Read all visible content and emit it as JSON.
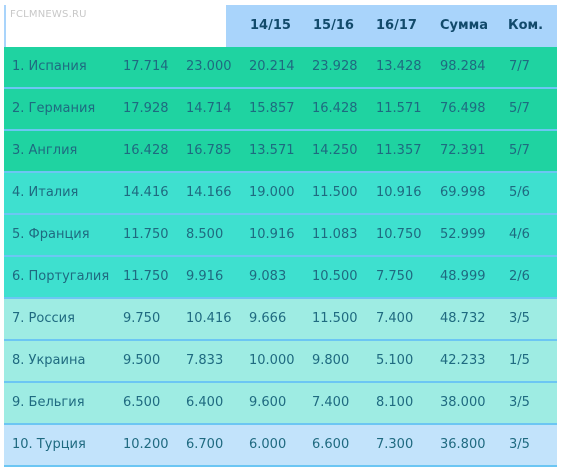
{
  "watermark": "FCLMNEWS.RU",
  "header": {
    "columns": [
      "14/15",
      "15/16",
      "16/17",
      "Сумма",
      "Ком."
    ]
  },
  "colors": {
    "header_bg": "#a9d4fb",
    "group_1": "#1fd3a1",
    "group_2": "#3ee0cf",
    "group_3": "#9eece3",
    "group_4": "#c2e3fb",
    "separator": "#6cc6f3",
    "text": "#1f6a80",
    "header_text": "#124a6b"
  },
  "rows": [
    {
      "name": "1. Испания",
      "c1": "17.714",
      "c2": "23.000",
      "c3": "20.214",
      "c4": "23.928",
      "c5": "13.428",
      "sum": "98.284",
      "teams": "7/7"
    },
    {
      "name": "2. Германия",
      "c1": "17.928",
      "c2": "14.714",
      "c3": "15.857",
      "c4": "16.428",
      "c5": "11.571",
      "sum": "76.498",
      "teams": "5/7"
    },
    {
      "name": "3. Англия",
      "c1": "16.428",
      "c2": "16.785",
      "c3": "13.571",
      "c4": "14.250",
      "c5": "11.357",
      "sum": "72.391",
      "teams": "5/7"
    },
    {
      "name": "4. Италия",
      "c1": "14.416",
      "c2": "14.166",
      "c3": "19.000",
      "c4": "11.500",
      "c5": "10.916",
      "sum": "69.998",
      "teams": "5/6"
    },
    {
      "name": "5. Франция",
      "c1": "11.750",
      "c2": "8.500",
      "c3": "10.916",
      "c4": "11.083",
      "c5": "10.750",
      "sum": "52.999",
      "teams": "4/6"
    },
    {
      "name": "6. Португалия",
      "c1": "11.750",
      "c2": "9.916",
      "c3": "9.083",
      "c4": "10.500",
      "c5": "7.750",
      "sum": "48.999",
      "teams": "2/6"
    },
    {
      "name": "7. Россия",
      "c1": "9.750",
      "c2": "10.416",
      "c3": "9.666",
      "c4": "11.500",
      "c5": "7.400",
      "sum": "48.732",
      "teams": "3/5"
    },
    {
      "name": "8. Украина",
      "c1": "9.500",
      "c2": "7.833",
      "c3": "10.000",
      "c4": "9.800",
      "c5": "5.100",
      "sum": "42.233",
      "teams": "1/5"
    },
    {
      "name": "9. Бельгия",
      "c1": "6.500",
      "c2": "6.400",
      "c3": "9.600",
      "c4": "7.400",
      "c5": "8.100",
      "sum": "38.000",
      "teams": "3/5"
    },
    {
      "name": "10. Турция",
      "c1": "10.200",
      "c2": "6.700",
      "c3": "6.000",
      "c4": "6.600",
      "c5": "7.300",
      "sum": "36.800",
      "teams": "3/5"
    }
  ]
}
